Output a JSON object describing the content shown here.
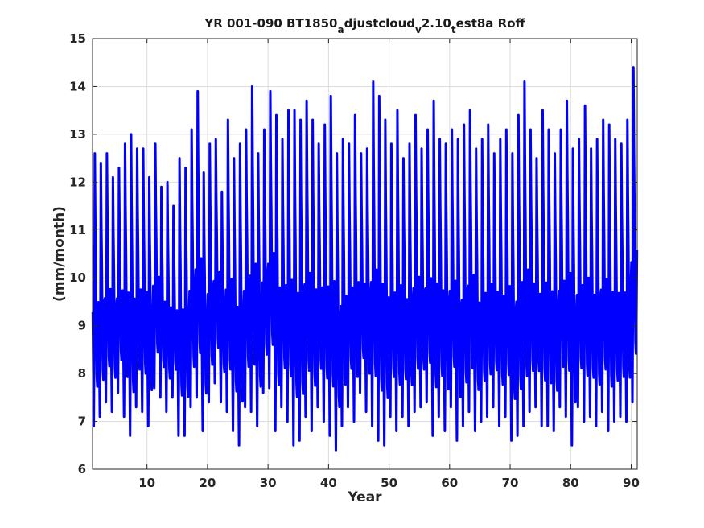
{
  "chart_data": {
    "type": "line",
    "title": {
      "parts": [
        {
          "text": "YR 001-090 BT1850",
          "shift": "none"
        },
        {
          "text": "a",
          "shift": "sub"
        },
        {
          "text": "djustcloud",
          "shift": "none"
        },
        {
          "text": "v",
          "shift": "sub"
        },
        {
          "text": "2.10",
          "shift": "none"
        },
        {
          "text": "t",
          "shift": "sub"
        },
        {
          "text": "est8a Roff",
          "shift": "none"
        }
      ]
    },
    "xlabel": "Year",
    "ylabel": "(mm/month)",
    "xlim": [
      1,
      91
    ],
    "ylim": [
      6,
      15
    ],
    "xticks": [
      10,
      20,
      30,
      40,
      50,
      60,
      70,
      80,
      90
    ],
    "yticks": [
      6,
      7,
      8,
      9,
      10,
      11,
      12,
      13,
      14,
      15
    ],
    "grid": true,
    "series": [
      {
        "color": "#0000ff",
        "line_width": 3,
        "seasonal_shape": [
          9.3,
          8.1,
          7.0,
          8.6,
          12.5,
          11.2,
          10.3,
          9.0,
          8.0,
          7.8,
          8.4,
          9.5
        ],
        "annual_max": [
          12.6,
          12.4,
          12.6,
          12.1,
          12.3,
          12.8,
          13.0,
          12.7,
          12.7,
          12.1,
          12.8,
          11.9,
          12.0,
          11.5,
          12.5,
          12.3,
          13.1,
          13.9,
          12.2,
          12.8,
          12.9,
          11.8,
          13.3,
          12.5,
          12.8,
          13.1,
          14.0,
          12.6,
          13.1,
          13.9,
          13.4,
          12.9,
          13.5,
          13.5,
          13.3,
          13.7,
          13.3,
          12.8,
          13.2,
          13.8,
          12.6,
          12.9,
          12.8,
          13.4,
          12.6,
          12.7,
          14.1,
          13.8,
          13.3,
          12.8,
          13.5,
          12.5,
          12.8,
          13.4,
          12.7,
          13.1,
          13.7,
          12.9,
          12.8,
          13.1,
          12.9,
          13.2,
          13.5,
          12.7,
          12.9,
          13.2,
          12.6,
          12.9,
          13.1,
          12.6,
          13.4,
          14.1,
          13.1,
          12.5,
          13.5,
          13.1,
          12.6,
          13.1,
          13.7,
          12.7,
          12.9,
          13.6,
          12.7,
          12.9,
          13.3,
          13.2,
          12.9,
          12.8,
          13.3,
          14.4
        ],
        "annual_min": [
          6.9,
          7.1,
          7.4,
          7.2,
          7.6,
          7.1,
          6.7,
          7.3,
          7.2,
          6.9,
          7.7,
          7.5,
          7.2,
          7.5,
          6.7,
          6.7,
          7.3,
          7.5,
          6.8,
          7.4,
          7.8,
          7.4,
          7.2,
          6.8,
          6.5,
          7.3,
          7.2,
          6.9,
          7.6,
          7.7,
          6.8,
          7.3,
          7.0,
          6.5,
          6.6,
          7.1,
          6.8,
          7.3,
          7.0,
          6.7,
          6.4,
          6.9,
          7.3,
          7.0,
          7.6,
          7.2,
          6.9,
          6.6,
          6.5,
          7.1,
          6.8,
          7.1,
          6.9,
          7.2,
          7.3,
          7.4,
          6.7,
          7.1,
          6.8,
          7.3,
          6.6,
          6.9,
          7.2,
          6.8,
          7.0,
          7.1,
          7.3,
          6.9,
          7.1,
          6.6,
          6.7,
          6.9,
          7.2,
          7.3,
          6.9,
          6.9,
          6.8,
          7.3,
          7.1,
          6.5,
          7.3,
          7.0,
          7.1,
          6.9,
          7.2,
          6.8,
          7.0,
          7.1,
          7.0,
          7.4
        ]
      }
    ]
  }
}
